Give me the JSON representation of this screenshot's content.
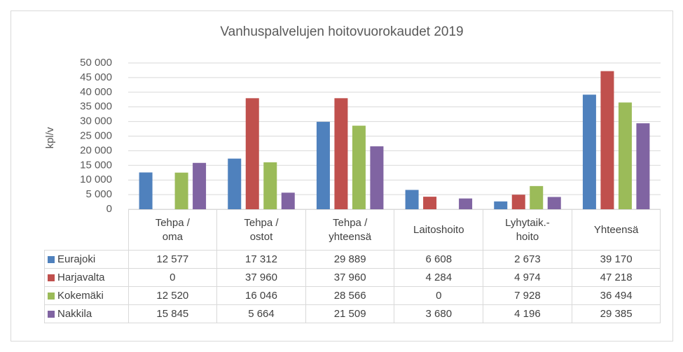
{
  "chart_data": {
    "type": "bar",
    "title": "Vanhuspalvelujen hoitovuorokaudet 2019",
    "y_label": "kpl/v",
    "categories": [
      "Tehpa / oma",
      "Tehpa / ostot",
      "Tehpa / yhteensä",
      "Laitoshoito",
      "Lyhytaik.-hoito",
      "Yhteensä"
    ],
    "series": [
      {
        "name": "Eurajoki",
        "color": "#4f81bd",
        "values": [
          12577,
          17312,
          29889,
          6608,
          2673,
          39170
        ],
        "value_labels": [
          "12 577",
          "17 312",
          "29 889",
          "6 608",
          "2 673",
          "39 170"
        ]
      },
      {
        "name": "Harjavalta",
        "color": "#c0504d",
        "values": [
          0,
          37960,
          37960,
          4284,
          4974,
          47218
        ],
        "value_labels": [
          "0",
          "37 960",
          "37 960",
          "4 284",
          "4 974",
          "47 218"
        ]
      },
      {
        "name": "Kokemäki",
        "color": "#9bbb59",
        "values": [
          12520,
          16046,
          28566,
          0,
          7928,
          36494
        ],
        "value_labels": [
          "12 520",
          "16 046",
          "28 566",
          "0",
          "7 928",
          "36 494"
        ]
      },
      {
        "name": "Nakkila",
        "color": "#8064a2",
        "values": [
          15845,
          5664,
          21509,
          3680,
          4196,
          29385
        ],
        "value_labels": [
          "15 845",
          "5 664",
          "21 509",
          "3 680",
          "4 196",
          "29 385"
        ]
      }
    ],
    "ylim": [
      0,
      50000
    ],
    "yticks": [
      0,
      {
        "value": 5000,
        "label": "5 000"
      },
      {
        "value": 10000,
        "label": "10 000"
      },
      {
        "value": 15000,
        "label": "15 000"
      },
      {
        "value": 20000,
        "label": "20 000"
      },
      {
        "value": 25000,
        "label": "25 000"
      },
      {
        "value": 30000,
        "label": "30 000"
      },
      {
        "value": 35000,
        "label": "35 000"
      },
      {
        "value": 40000,
        "label": "40 000"
      },
      {
        "value": 45000,
        "label": "45 000"
      },
      {
        "value": 50000,
        "label": "50 000"
      }
    ],
    "grid": true
  }
}
